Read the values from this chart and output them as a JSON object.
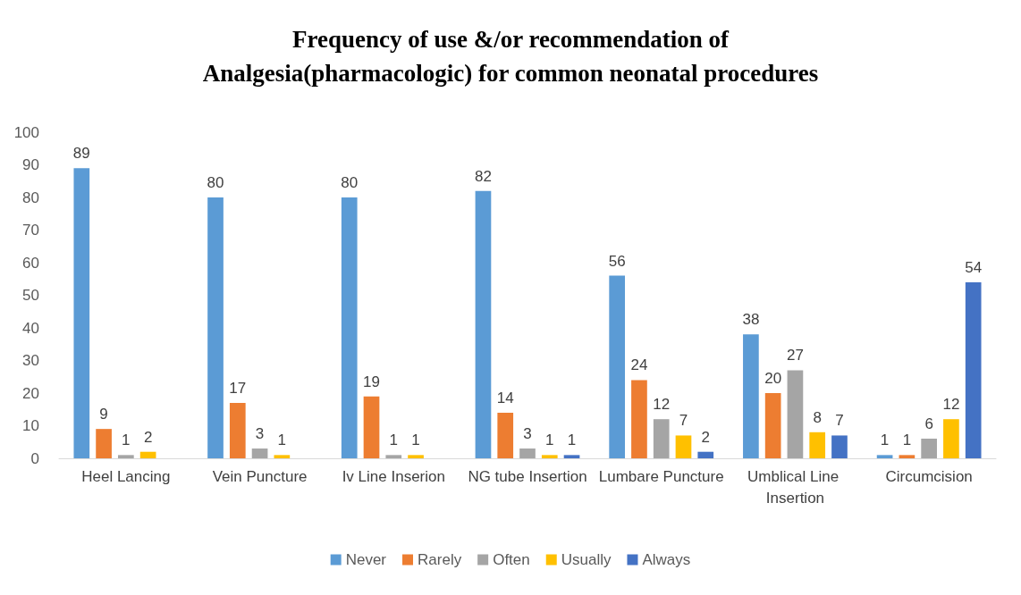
{
  "chart_data": {
    "type": "bar",
    "title": "Frequency of use &/or recommendation of\nAnalgesia(pharmacologic) for common neonatal procedures",
    "categories": [
      "Heel Lancing",
      "Vein Puncture",
      "Iv Line Inserion",
      "NG tube Insertion",
      "Lumbare Puncture",
      "Umblical Line Insertion",
      "Circumcision"
    ],
    "series": [
      {
        "name": "Never",
        "color": "#5b9bd5",
        "values": [
          89,
          80,
          80,
          82,
          56,
          38,
          1
        ]
      },
      {
        "name": "Rarely",
        "color": "#ed7d31",
        "values": [
          9,
          17,
          19,
          14,
          24,
          20,
          1
        ]
      },
      {
        "name": "Often",
        "color": "#a5a5a5",
        "values": [
          1,
          3,
          1,
          3,
          12,
          27,
          6
        ]
      },
      {
        "name": "Usually",
        "color": "#ffc000",
        "values": [
          2,
          1,
          1,
          1,
          7,
          8,
          12
        ]
      },
      {
        "name": "Always",
        "color": "#4472c4",
        "values": [
          null,
          null,
          null,
          1,
          2,
          7,
          54
        ]
      }
    ],
    "ylim": [
      0,
      100
    ],
    "yticks": [
      0,
      10,
      20,
      30,
      40,
      50,
      60,
      70,
      80,
      90,
      100
    ],
    "grid": false,
    "legend": "bottom",
    "data_labels": true
  }
}
